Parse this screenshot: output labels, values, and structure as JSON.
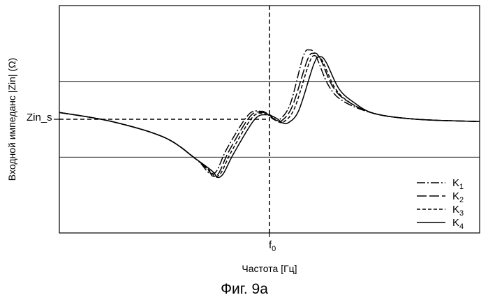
{
  "chart_data": {
    "type": "line",
    "title": "",
    "xlabel": "Частота [Гц]",
    "ylabel": "Входной импеданс |Zin| (Ω)",
    "figure_caption": "Фиг. 9a",
    "x_marker_label": "f",
    "x_marker_sub": "0",
    "y_marker_label": "Zin_s",
    "x_marker_value": 0,
    "y_marker_value": 0,
    "xlim": [
      -1,
      1
    ],
    "ylim": [
      -1,
      1
    ],
    "grid": "horizontal",
    "legend_position": "bottom-right",
    "series": [
      {
        "name": "K1",
        "label_main": "K",
        "label_sub": "1",
        "dash": "12,3,2,3",
        "x": [
          -1.0,
          -0.75,
          -0.5,
          -0.35,
          -0.3,
          -0.28,
          -0.25,
          -0.2,
          -0.1,
          -0.04,
          -0.02,
          0.0,
          0.02,
          0.05,
          0.1,
          0.16,
          0.19,
          0.22,
          0.28,
          0.35,
          0.5,
          0.7,
          1.0
        ],
        "y": [
          0.06,
          -0.02,
          -0.16,
          -0.35,
          -0.45,
          -0.48,
          -0.45,
          -0.25,
          0.04,
          0.07,
          0.06,
          0.03,
          0.0,
          0.0,
          0.14,
          0.55,
          0.61,
          0.56,
          0.3,
          0.16,
          0.05,
          0.0,
          -0.02
        ]
      },
      {
        "name": "K2",
        "label_main": "K",
        "label_sub": "2",
        "dash": "14,4",
        "x": [
          -1.0,
          -0.75,
          -0.5,
          -0.35,
          -0.29,
          -0.27,
          -0.24,
          -0.19,
          -0.09,
          -0.03,
          -0.01,
          0.01,
          0.03,
          0.06,
          0.11,
          0.18,
          0.21,
          0.24,
          0.3,
          0.37,
          0.5,
          0.7,
          1.0
        ],
        "y": [
          0.06,
          -0.02,
          -0.16,
          -0.35,
          -0.45,
          -0.5,
          -0.47,
          -0.27,
          0.03,
          0.06,
          0.05,
          0.02,
          -0.01,
          -0.01,
          0.12,
          0.52,
          0.58,
          0.54,
          0.29,
          0.16,
          0.05,
          0.0,
          -0.02
        ]
      },
      {
        "name": "K3",
        "label_main": "K",
        "label_sub": "3",
        "dash": "5,3",
        "x": [
          -1.0,
          -0.75,
          -0.5,
          -0.35,
          -0.28,
          -0.26,
          -0.23,
          -0.18,
          -0.08,
          -0.02,
          0.0,
          0.02,
          0.04,
          0.07,
          0.12,
          0.19,
          0.22,
          0.25,
          0.31,
          0.38,
          0.5,
          0.7,
          1.0
        ],
        "y": [
          0.06,
          -0.02,
          -0.16,
          -0.35,
          -0.46,
          -0.5,
          -0.47,
          -0.28,
          0.02,
          0.05,
          0.04,
          0.01,
          -0.02,
          -0.02,
          0.1,
          0.5,
          0.56,
          0.52,
          0.28,
          0.15,
          0.05,
          0.0,
          -0.02
        ]
      },
      {
        "name": "K4",
        "label_main": "K",
        "label_sub": "4",
        "dash": "",
        "x": [
          -1.0,
          -0.75,
          -0.5,
          -0.35,
          -0.27,
          -0.25,
          -0.22,
          -0.17,
          -0.07,
          -0.01,
          0.01,
          0.04,
          0.06,
          0.09,
          0.14,
          0.21,
          0.24,
          0.27,
          0.33,
          0.4,
          0.5,
          0.7,
          1.0
        ],
        "y": [
          0.06,
          -0.02,
          -0.16,
          -0.35,
          -0.46,
          -0.51,
          -0.48,
          -0.3,
          0.0,
          0.04,
          0.03,
          0.0,
          -0.03,
          -0.03,
          0.08,
          0.48,
          0.55,
          0.5,
          0.27,
          0.15,
          0.05,
          0.0,
          -0.02
        ]
      }
    ]
  }
}
